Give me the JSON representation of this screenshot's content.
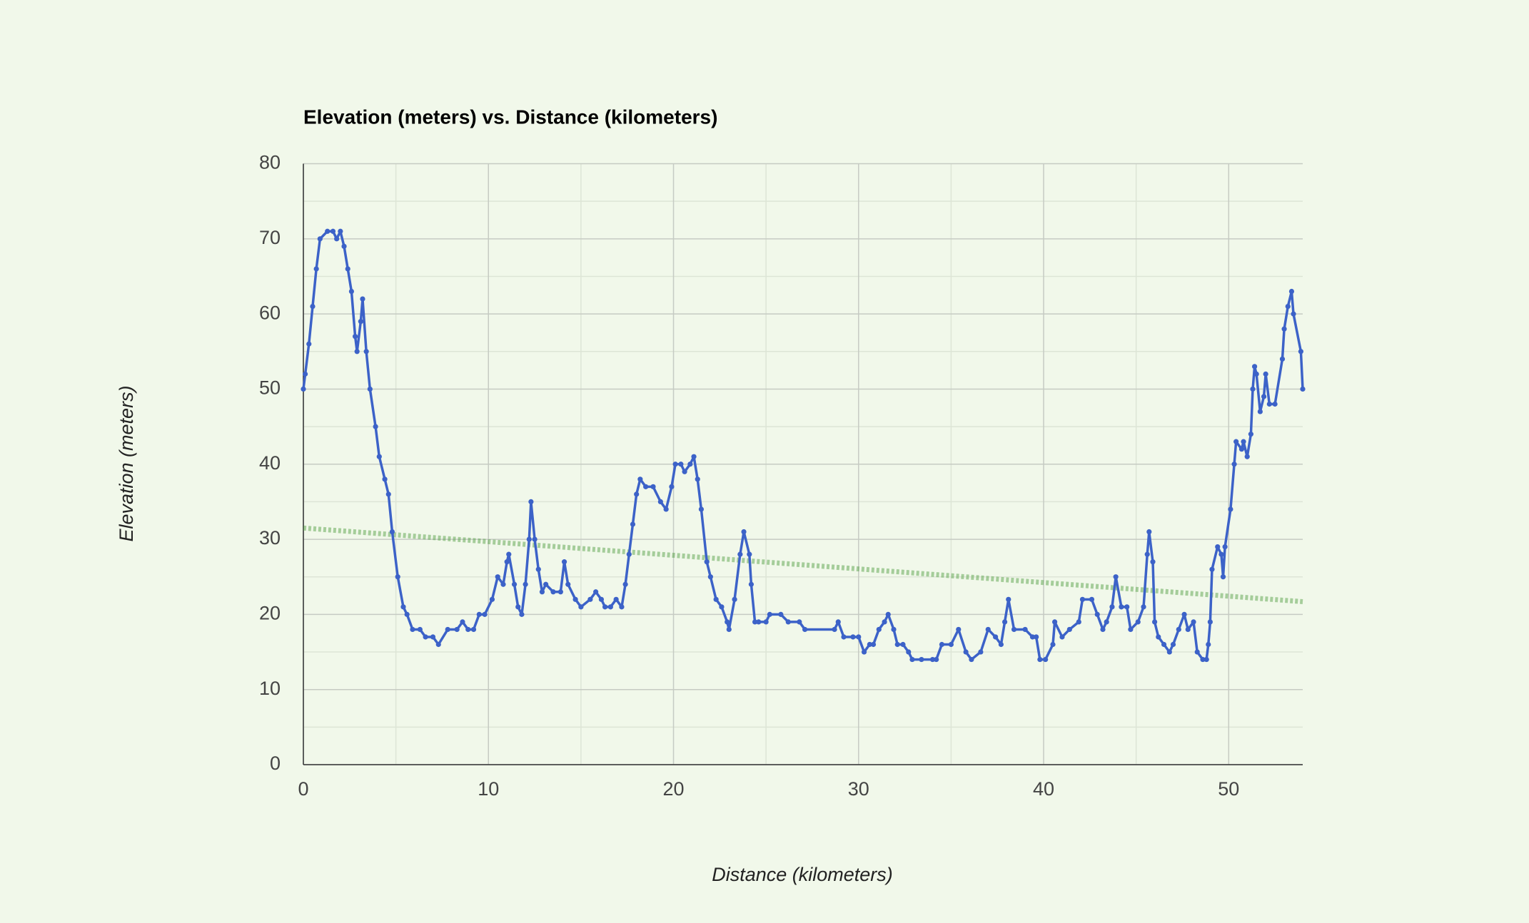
{
  "chart_data": {
    "type": "line",
    "title": "Elevation (meters) vs. Distance (kilometers)",
    "x_label": "Distance (kilometers)",
    "y_label": "Elevation (meters)",
    "xlim": [
      0,
      54
    ],
    "ylim": [
      0,
      80
    ],
    "xticks": [
      0,
      10,
      20,
      30,
      40,
      50
    ],
    "yticks": [
      0,
      10,
      20,
      30,
      40,
      50,
      60,
      70,
      80
    ],
    "grid": true,
    "minor_grid": true,
    "series": [
      {
        "color": "#3c62c8",
        "x": [
          0,
          0.1,
          0.3,
          0.5,
          0.7,
          0.9,
          1.3,
          1.6,
          1.8,
          2,
          2.2,
          2.4,
          2.6,
          2.8,
          2.9,
          3.1,
          3.2,
          3.4,
          3.6,
          3.9,
          4.1,
          4.4,
          4.6,
          4.8,
          5.1,
          5.4,
          5.6,
          5.9,
          6.3,
          6.6,
          7,
          7.3,
          7.8,
          8.3,
          8.6,
          8.9,
          9.2,
          9.5,
          9.8,
          10.2,
          10.5,
          10.8,
          11,
          11.1,
          11.4,
          11.6,
          11.8,
          12,
          12.2,
          12.3,
          12.5,
          12.7,
          12.9,
          13.1,
          13.5,
          13.9,
          14.1,
          14.3,
          14.7,
          15,
          15.5,
          15.8,
          16.1,
          16.3,
          16.6,
          16.9,
          17.2,
          17.4,
          17.6,
          17.8,
          18,
          18.2,
          18.5,
          18.9,
          19.3,
          19.6,
          19.9,
          20.1,
          20.4,
          20.6,
          20.9,
          21.1,
          21.3,
          21.5,
          21.8,
          22,
          22.3,
          22.6,
          22.9,
          23,
          23.3,
          23.6,
          23.8,
          24.1,
          24.2,
          24.4,
          24.6,
          25,
          25.2,
          25.8,
          26.2,
          26.8,
          27.1,
          28.7,
          28.9,
          29.2,
          29.7,
          30,
          30.3,
          30.6,
          30.8,
          31.1,
          31.4,
          31.6,
          31.9,
          32.1,
          32.4,
          32.7,
          32.9,
          33.4,
          34,
          34.2,
          34.5,
          35,
          35.4,
          35.8,
          36.1,
          36.6,
          37,
          37.4,
          37.7,
          37.9,
          38.1,
          38.4,
          39,
          39.4,
          39.6,
          39.8,
          40.1,
          40.5,
          40.6,
          41,
          41.4,
          41.9,
          42.1,
          42.6,
          42.9,
          43.2,
          43.4,
          43.7,
          43.9,
          44.2,
          44.5,
          44.7,
          45.1,
          45.4,
          45.6,
          45.7,
          45.9,
          46,
          46.2,
          46.5,
          46.8,
          47,
          47.3,
          47.6,
          47.8,
          48.1,
          48.3,
          48.6,
          48.8,
          48.9,
          49,
          49.1,
          49.4,
          49.6,
          49.7,
          49.8,
          50.1,
          50.3,
          50.4,
          50.7,
          50.8,
          51,
          51.2,
          51.3,
          51.4,
          51.5,
          51.7,
          51.9,
          52,
          52.2,
          52.5,
          52.9,
          53,
          53.2,
          53.4,
          53.5,
          53.9,
          54
        ],
        "values": [
          50,
          52,
          56,
          61,
          66,
          70,
          71,
          71,
          70,
          71,
          69,
          66,
          63,
          57,
          55,
          59,
          62,
          55,
          50,
          45,
          41,
          38,
          36,
          31,
          25,
          21,
          20,
          18,
          18,
          17,
          17,
          16,
          18,
          18,
          19,
          18,
          18,
          20,
          20,
          22,
          25,
          24,
          27,
          28,
          24,
          21,
          20,
          24,
          30,
          35,
          30,
          26,
          23,
          24,
          23,
          23,
          27,
          24,
          22,
          21,
          22,
          23,
          22,
          21,
          21,
          22,
          21,
          24,
          28,
          32,
          36,
          38,
          37,
          37,
          35,
          34,
          37,
          40,
          40,
          39,
          40,
          41,
          38,
          34,
          27,
          25,
          22,
          21,
          19,
          18,
          22,
          28,
          31,
          28,
          24,
          19,
          19,
          19,
          20,
          20,
          19,
          19,
          18,
          18,
          19,
          17,
          17,
          17,
          15,
          16,
          16,
          18,
          19,
          20,
          18,
          16,
          16,
          15,
          14,
          14,
          14,
          14,
          16,
          16,
          18,
          15,
          14,
          15,
          18,
          17,
          16,
          19,
          22,
          18,
          18,
          17,
          17,
          14,
          14,
          16,
          19,
          17,
          18,
          19,
          22,
          22,
          20,
          18,
          19,
          21,
          25,
          21,
          21,
          18,
          19,
          21,
          28,
          31,
          27,
          19,
          17,
          16,
          15,
          16,
          18,
          20,
          18,
          19,
          15,
          14,
          14,
          16,
          19,
          26,
          29,
          28,
          25,
          29,
          34,
          40,
          43,
          42,
          43,
          41,
          44,
          50,
          53,
          52,
          47,
          49,
          52,
          48,
          48,
          54,
          58,
          61,
          63,
          60,
          55,
          50
        ]
      }
    ],
    "trendline": {
      "color": "#4a9a3a",
      "x": [
        0,
        54
      ],
      "values": [
        31.5,
        21.7
      ]
    }
  }
}
